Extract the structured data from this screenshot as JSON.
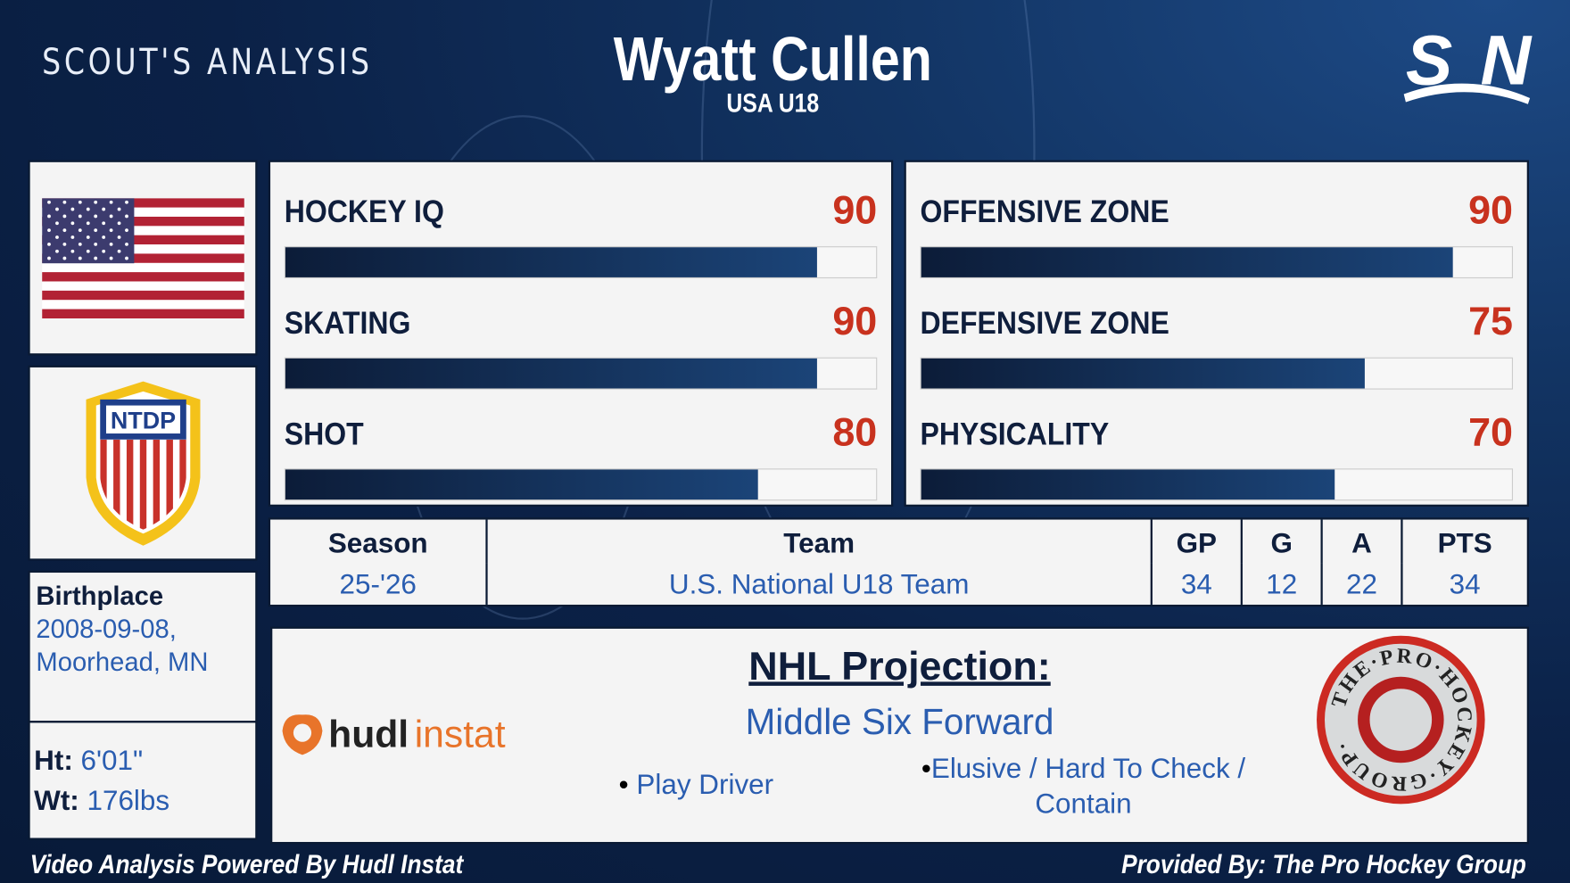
{
  "header": {
    "section_title": "SCOUT'S ANALYSIS",
    "player_name": "Wyatt Cullen",
    "team": "USA U18",
    "network_logo": "SN"
  },
  "sidebar": {
    "flag": "usa-flag",
    "team_logo": "NTDP",
    "birthplace_label": "Birthplace",
    "birthplace_value": "2008-09-08, Moorhead, MN",
    "height_label": "Ht:",
    "height_value": "6'01\"",
    "weight_label": "Wt:",
    "weight_value": "176lbs"
  },
  "ratings_left": [
    {
      "label": "HOCKEY IQ",
      "value": 90
    },
    {
      "label": "SKATING",
      "value": 90
    },
    {
      "label": "SHOT",
      "value": 80
    }
  ],
  "ratings_right": [
    {
      "label": "OFFENSIVE ZONE",
      "value": 90
    },
    {
      "label": "DEFENSIVE ZONE",
      "value": 75
    },
    {
      "label": "PHYSICALITY",
      "value": 70
    }
  ],
  "rating_max": 100,
  "stats": {
    "headers": [
      "Season",
      "Team",
      "GP",
      "G",
      "A",
      "PTS"
    ],
    "row": [
      "25-'26",
      "U.S. National U18 Team",
      "34",
      "12",
      "22",
      "34"
    ]
  },
  "projection": {
    "title": "NHL Projection:",
    "role": "Middle Six Forward",
    "traits": [
      "Play Driver",
      "Elusive / Hard To Check / Contain"
    ],
    "left_logo": "hudlinstat",
    "right_logo": "THE·PRO·HOCKEY·GROUP"
  },
  "footer": {
    "left": "Video Analysis Powered By Hudl Instat",
    "right": "Provided By: The Pro Hockey Group"
  },
  "colors": {
    "accent_red": "#c8321e",
    "value_blue": "#2a5db0",
    "navy": "#0f1e3c"
  }
}
